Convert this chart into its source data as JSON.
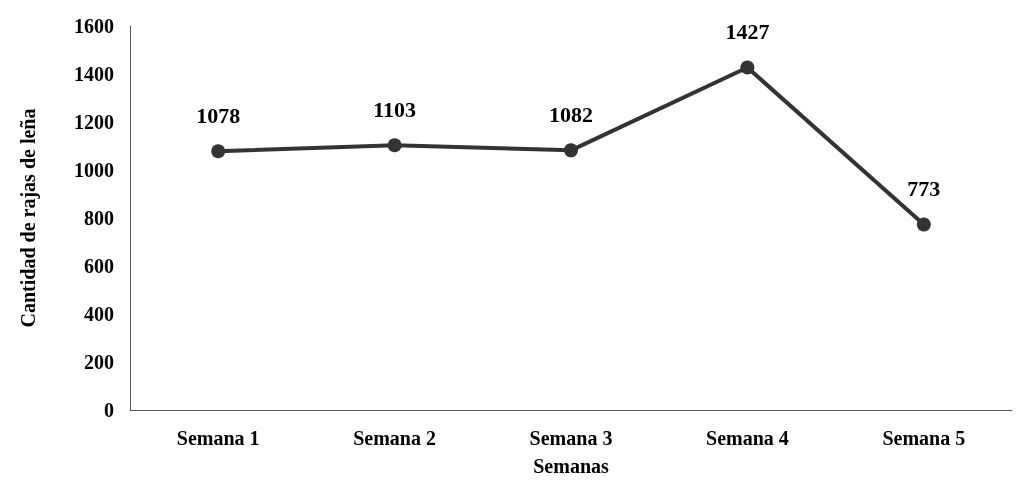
{
  "chart_data": {
    "type": "line",
    "xlabel": "Semanas",
    "ylabel": "Cantidad de rajas de leña",
    "categories": [
      "Semana 1",
      "Semana 2",
      "Semana 3",
      "Semana 4",
      "Semana 5"
    ],
    "series": [
      {
        "color": "#333333",
        "values": [
          1078,
          1103,
          1082,
          1427,
          773
        ]
      }
    ],
    "ylim": [
      0,
      1600
    ],
    "yticks": [
      0,
      200,
      400,
      600,
      800,
      1000,
      1200,
      1400,
      1600
    ],
    "grid": false,
    "marker": "circle",
    "line_style": "solid",
    "data_labels": true
  }
}
